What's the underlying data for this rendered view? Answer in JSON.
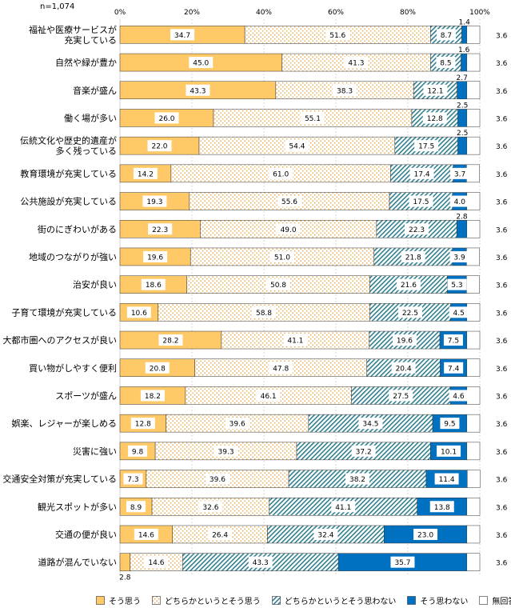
{
  "chart_data": {
    "type": "bar",
    "orientation": "horizontal",
    "stacked": true,
    "sample_size_label": "n=1,074",
    "x_ticks": [
      "0%",
      "20%",
      "40%",
      "60%",
      "80%",
      "100%"
    ],
    "xlim": [
      0,
      100
    ],
    "categories": [
      "福祉や医療サービスが充実している",
      "自然や緑が豊か",
      "音楽が盛ん",
      "働く場が多い",
      "伝統文化や歴史的遺産が多く残っている",
      "教育環境が充実している",
      "公共施設が充実している",
      "街のにぎわいがある",
      "地域のつながりが強い",
      "治安が良い",
      "子育て環境が充実している",
      "大都市圏へのアクセスが良い",
      "買い物がしやすく便利",
      "スポーツが盛ん",
      "娯楽、レジャーが楽しめる",
      "災害に強い",
      "交通安全対策が充実している",
      "観光スポットが多い",
      "交通の便が良い",
      "道路が混んでいない"
    ],
    "category_labels": [
      [
        "福祉や医療サービスが",
        "充実している"
      ],
      [
        "自然や緑が豊か"
      ],
      [
        "音楽が盛ん"
      ],
      [
        "働く場が多い"
      ],
      [
        "伝統文化や歴史的遺産が",
        "多く残っている"
      ],
      [
        "教育環境が充実している"
      ],
      [
        "公共施設が充実している"
      ],
      [
        "街のにぎわいがある"
      ],
      [
        "地域のつながりが強い"
      ],
      [
        "治安が良い"
      ],
      [
        "子育て環境が充実している"
      ],
      [
        "大都市圏へのアクセスが良い"
      ],
      [
        "買い物がしやすく便利"
      ],
      [
        "スポーツが盛ん"
      ],
      [
        "娯楽、レジャーが楽しめる"
      ],
      [
        "災害に強い"
      ],
      [
        "交通安全対策が充実している"
      ],
      [
        "観光スポットが多い"
      ],
      [
        "交通の便が良い"
      ],
      [
        "道路が混んでいない"
      ]
    ],
    "series": [
      {
        "name": "そう思う",
        "color": "#FFC967",
        "values": [
          34.7,
          45.0,
          43.3,
          26.0,
          22.0,
          14.2,
          19.3,
          22.3,
          19.6,
          18.6,
          10.6,
          28.2,
          20.8,
          18.2,
          12.8,
          9.8,
          7.3,
          8.9,
          14.6,
          2.8
        ]
      },
      {
        "name": "どちらかというとそう思う",
        "color": "#F2A93B",
        "values": [
          51.6,
          41.3,
          38.3,
          55.1,
          54.4,
          61.0,
          55.6,
          49.0,
          51.0,
          50.8,
          58.8,
          41.1,
          47.8,
          46.1,
          39.6,
          39.3,
          39.6,
          32.6,
          26.4,
          14.6
        ]
      },
      {
        "name": "どちらかというとそう思わない",
        "color": "#2F7F8F",
        "values": [
          8.7,
          8.5,
          12.1,
          12.8,
          17.5,
          17.4,
          17.5,
          22.3,
          21.8,
          21.6,
          22.5,
          19.6,
          20.4,
          27.5,
          34.5,
          37.2,
          38.2,
          41.1,
          32.4,
          43.3
        ]
      },
      {
        "name": "そう思わない",
        "color": "#0070C0",
        "values": [
          1.4,
          1.6,
          2.7,
          2.5,
          2.5,
          3.7,
          4.0,
          2.8,
          3.9,
          5.3,
          4.5,
          7.5,
          7.4,
          4.6,
          9.5,
          10.1,
          11.4,
          13.8,
          23.0,
          35.7
        ]
      },
      {
        "name": "無回答",
        "color": "#FFFFFF",
        "values": [
          3.6,
          3.6,
          3.6,
          3.6,
          3.6,
          3.6,
          3.6,
          3.6,
          3.6,
          3.6,
          3.6,
          3.6,
          3.6,
          3.6,
          3.6,
          3.6,
          3.6,
          3.6,
          3.6,
          3.6
        ]
      }
    ]
  }
}
